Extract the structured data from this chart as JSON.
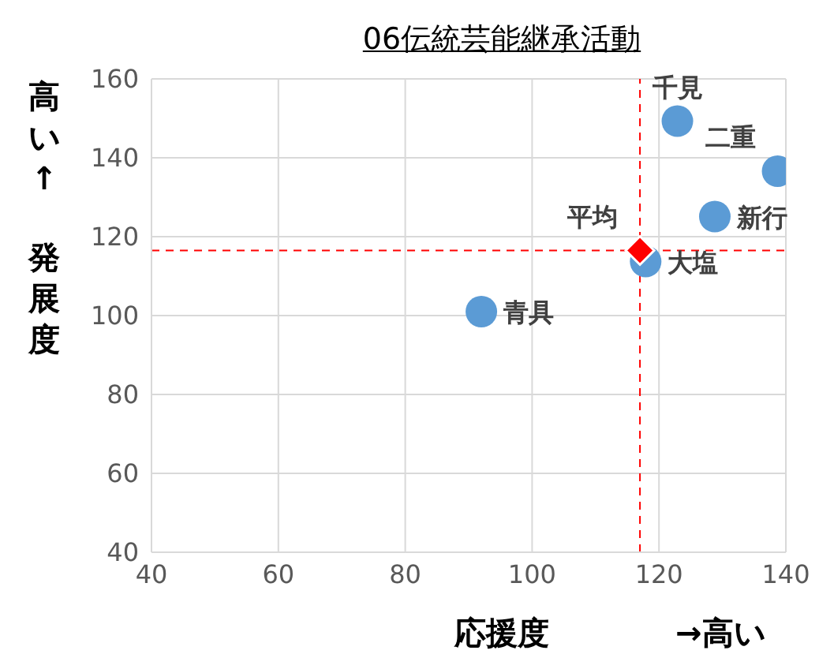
{
  "chart_data": {
    "type": "scatter",
    "title": "06伝統芸能継承活動",
    "xlabel": "応援度",
    "ylabel": "発展度",
    "annotations": [
      "高い↑",
      "→高い"
    ],
    "xlim": [
      40,
      140
    ],
    "xticks": [
      40,
      60,
      80,
      100,
      120,
      140
    ],
    "ylim": [
      40,
      160
    ],
    "yticks": [
      40,
      60,
      80,
      100,
      120,
      140,
      160
    ],
    "grid": true,
    "marker": "circle",
    "series": [
      {
        "name": "千見",
        "color": "#5b9bd5",
        "x": [
          122.9
        ],
        "values": [
          149.3
        ]
      },
      {
        "name": "二重",
        "color": "#5b9bd5",
        "x": [
          138.7
        ],
        "values": [
          136.6
        ]
      },
      {
        "name": "新行",
        "color": "#5b9bd5",
        "x": [
          128.8
        ],
        "values": [
          125.1
        ]
      },
      {
        "name": "大塩",
        "color": "#5b9bd5",
        "x": [
          117.9
        ],
        "values": [
          113.7
        ]
      },
      {
        "name": "青具",
        "color": "#5b9bd5",
        "x": [
          92
        ],
        "values": [
          101
        ]
      },
      {
        "name": "平均",
        "color": "#ff0000",
        "marker": "diamond",
        "x": [
          117
        ],
        "values": [
          116.5
        ]
      }
    ],
    "ref_lines": [
      {
        "axis": "x",
        "value": 117,
        "color": "#ff0000",
        "line_style": "dashed"
      },
      {
        "axis": "y",
        "value": 116.5,
        "color": "#ff0000",
        "line_style": "dashed"
      }
    ]
  }
}
